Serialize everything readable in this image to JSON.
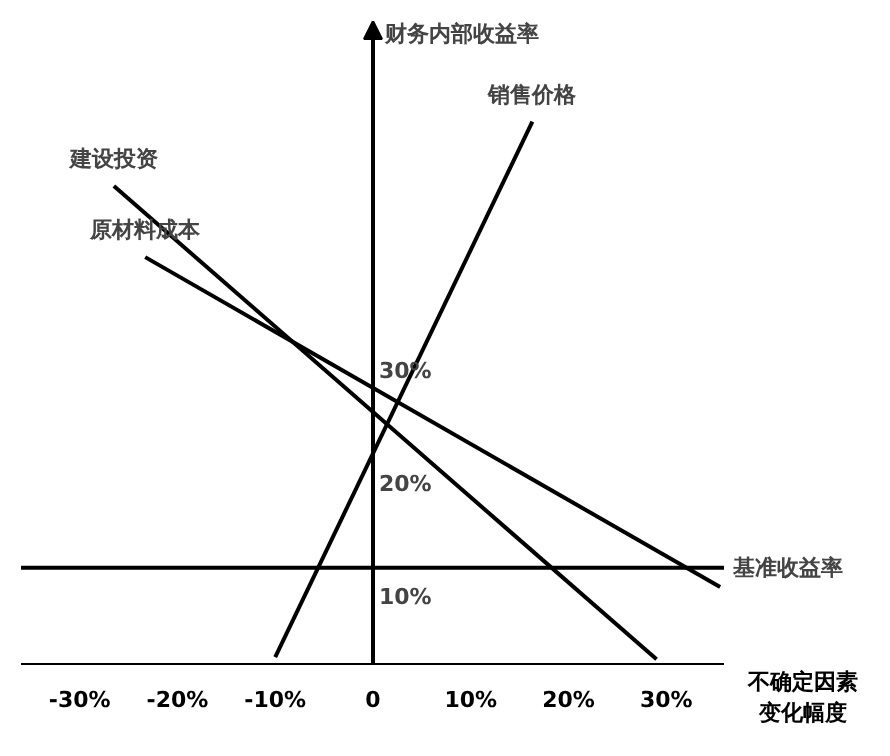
{
  "chart_data": {
    "type": "line",
    "xlabel": "不确定因素变化幅度",
    "ylabel": "财务内部收益率",
    "series": [
      {
        "name": "销售价格",
        "color": "#000000",
        "x": [
          -10,
          16.3
        ],
        "values": [
          4.7,
          52.1
        ]
      },
      {
        "name": "建设投资",
        "color": "#000000",
        "x": [
          -26.5,
          29
        ],
        "values": [
          46.4,
          4.5
        ]
      },
      {
        "name": "原材料成本",
        "color": "#000000",
        "x": [
          -23.3,
          35.5
        ],
        "values": [
          40.1,
          10.9
        ]
      }
    ],
    "xlim": [
      -36,
      36
    ],
    "ylim": [
      4,
      61
    ],
    "xticks": [
      {
        "value": -30,
        "label": "-30%"
      },
      {
        "value": -20,
        "label": "-20%"
      },
      {
        "value": -10,
        "label": "-10%"
      },
      {
        "value": 0,
        "label": "0"
      },
      {
        "value": 10,
        "label": "10%"
      },
      {
        "value": 20,
        "label": "20%"
      },
      {
        "value": 30,
        "label": "30%"
      }
    ],
    "yticks": [
      {
        "value": 10,
        "label": "10%"
      },
      {
        "value": 20,
        "label": "20%"
      },
      {
        "value": 30,
        "label": "30%"
      }
    ],
    "ref_lines": [
      {
        "axis": "y",
        "value": 12.6,
        "label": "基准收益率",
        "color": "#000000"
      }
    ],
    "grid": false,
    "legend": false
  }
}
